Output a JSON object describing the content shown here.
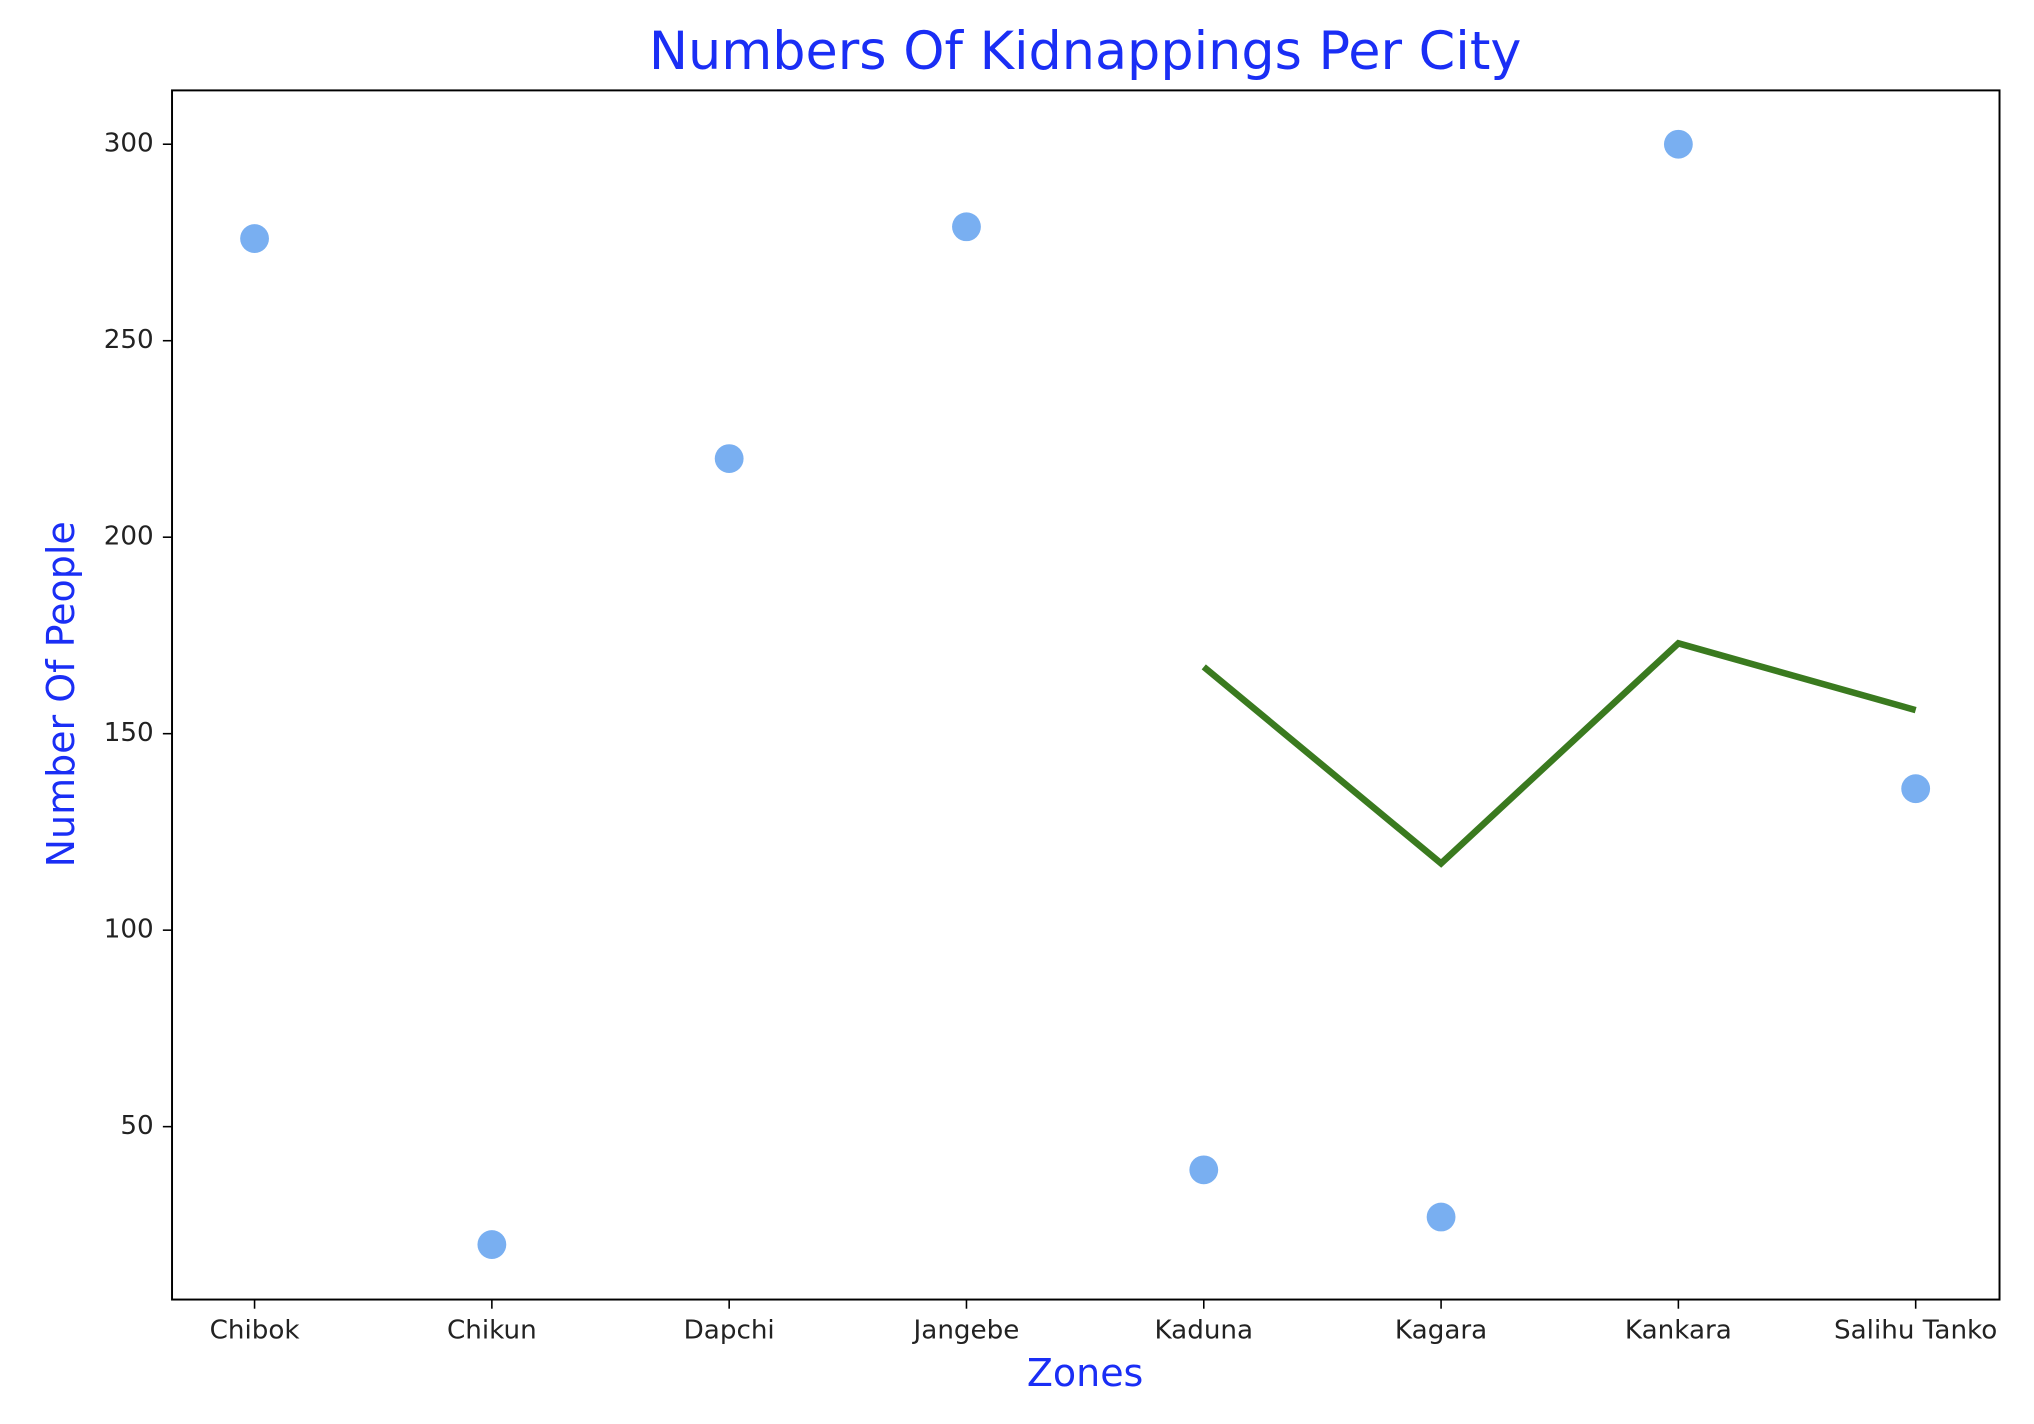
{
  "chart_data": {
    "type": "scatter",
    "title": "Numbers Of Kidnappings Per City",
    "xlabel": "Zones",
    "ylabel": "Number Of People",
    "label_color": "#1a2ef5",
    "categories": [
      "Chibok",
      "Chikun",
      "Dapchi",
      "Jangebe",
      "Kaduna",
      "Kagara",
      "Kankara",
      "Salihu Tanko"
    ],
    "series": [
      {
        "type": "scatter",
        "color": "#6aa6f0",
        "values": [
          276,
          20,
          220,
          279,
          39,
          27,
          300,
          136
        ]
      },
      {
        "type": "line",
        "color": "#3a7a1f",
        "values": [
          null,
          null,
          null,
          null,
          167,
          117,
          173,
          156
        ]
      }
    ],
    "ylim": [
      6,
      313.7
    ],
    "yticks": [
      50,
      100,
      150,
      200,
      250,
      300
    ],
    "grid": false
  }
}
